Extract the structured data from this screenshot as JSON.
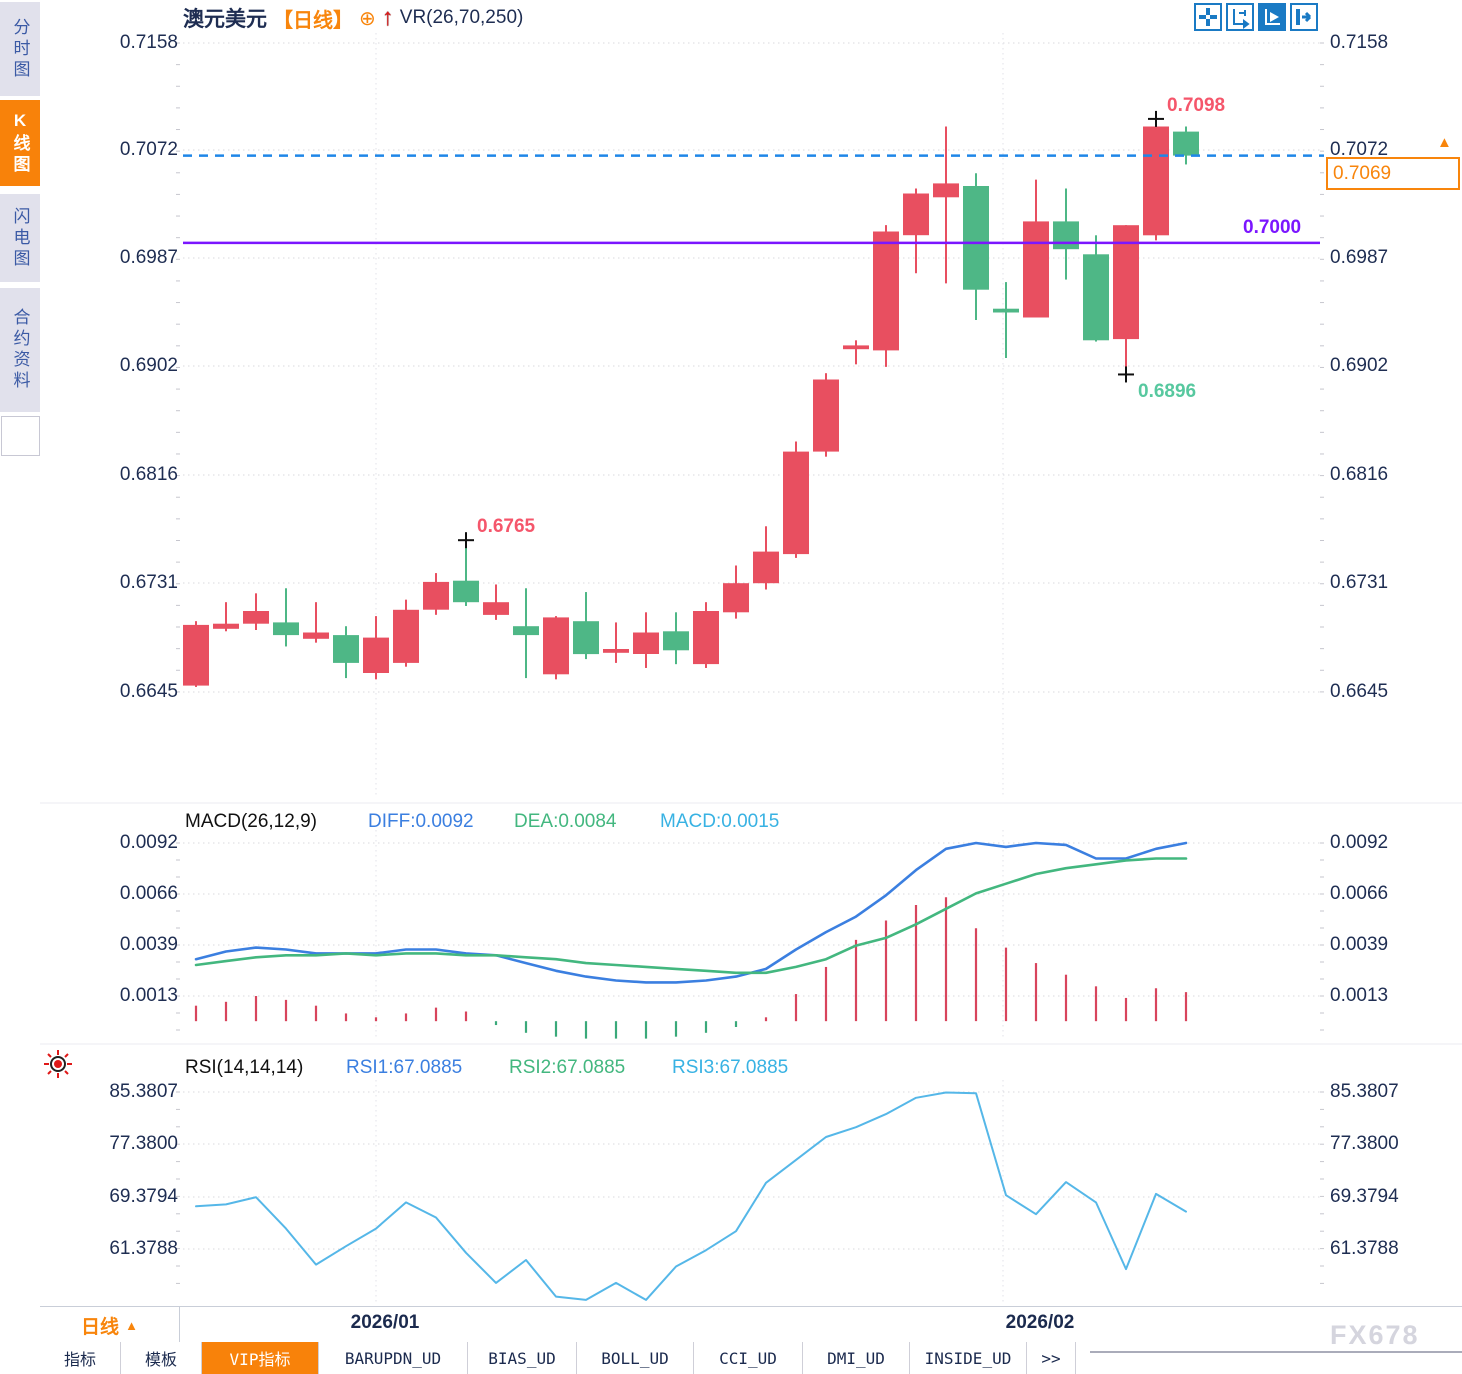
{
  "title": {
    "symbol": "澳元美元",
    "period": "【日线】",
    "plus_icon": "⊕",
    "indicator": "VR(26,70,250)"
  },
  "sidebar": {
    "tabs": [
      {
        "label": "分时图",
        "active": false
      },
      {
        "label": "K线图",
        "active": true
      },
      {
        "label": "闪电图",
        "active": false
      },
      {
        "label": "合约资料",
        "active": false
      }
    ]
  },
  "toolbar_icons": [
    "move-icon",
    "axis-range-icon",
    "axis-play-icon",
    "collapse-right-icon"
  ],
  "main_chart": {
    "y_axis": [
      "0.7158",
      "0.7072",
      "0.6987",
      "0.6902",
      "0.6816",
      "0.6731",
      "0.6645"
    ],
    "annotations": {
      "high": "0.7098",
      "low": "0.6896",
      "swing_high": "0.6765",
      "support_line": "0.7000"
    },
    "last_price": "0.7069",
    "marker_arrow": "▲"
  },
  "macd_panel": {
    "title": "MACD(26,12,9)",
    "diff_label": "DIFF:0.0092",
    "dea_label": "DEA:0.0084",
    "macd_label": "MACD:0.0015",
    "y_axis": [
      "0.0092",
      "0.0066",
      "0.0039",
      "0.0013"
    ]
  },
  "rsi_panel": {
    "title": "RSI(14,14,14)",
    "rsi1_label": "RSI1:67.0885",
    "rsi2_label": "RSI2:67.0885",
    "rsi3_label": "RSI3:67.0885",
    "y_axis": [
      "85.3807",
      "77.3800",
      "69.3794",
      "61.3788"
    ]
  },
  "time_axis": {
    "period": "日线",
    "period_arrow": "▲",
    "dates": [
      "2026/01",
      "2026/02"
    ],
    "watermark": "FX678"
  },
  "bottom_tabs": [
    {
      "label": "指标",
      "active": false
    },
    {
      "label": "模板",
      "active": false
    },
    {
      "label": "VIP指标",
      "active": true
    },
    {
      "label": "BARUPDN_UD",
      "active": false
    },
    {
      "label": "BIAS_UD",
      "active": false
    },
    {
      "label": "BOLL_UD",
      "active": false
    },
    {
      "label": "CCI_UD",
      "active": false
    },
    {
      "label": "DMI_UD",
      "active": false
    },
    {
      "label": "INSIDE_UD",
      "active": false
    },
    {
      "label": ">>",
      "active": false
    }
  ],
  "colors": {
    "up": "#e84f60",
    "down": "#4eb786",
    "hist_up": "#d8445c",
    "hist_down": "#3aa97a",
    "accent_orange": "#f8850c",
    "purple": "#7b16ff",
    "dashed_blue": "#1f86e8",
    "diff_blue": "#3b7fe0",
    "dea_green": "#43b77f",
    "macd_cyan": "#38b2e3",
    "rsi_line": "#55b7e8",
    "axis_text": "#1e2d52",
    "cross": "#101010"
  },
  "chart_data": [
    {
      "type": "candlestick",
      "title": "澳元美元 日线",
      "x_labels": [
        "2026/01",
        "2026/02"
      ],
      "ylim": [
        0.6645,
        0.7158
      ],
      "yticks": [
        0.7158,
        0.7072,
        0.6987,
        0.6902,
        0.6816,
        0.6731,
        0.6645
      ],
      "ohlc": [
        [
          0.665,
          0.6701,
          0.6649,
          0.6698
        ],
        [
          0.6695,
          0.6716,
          0.6693,
          0.6699
        ],
        [
          0.6699,
          0.6723,
          0.6694,
          0.6709
        ],
        [
          0.67,
          0.6727,
          0.6681,
          0.669
        ],
        [
          0.6687,
          0.6716,
          0.6684,
          0.6692
        ],
        [
          0.669,
          0.6697,
          0.6656,
          0.6668
        ],
        [
          0.666,
          0.6705,
          0.6655,
          0.6688
        ],
        [
          0.6668,
          0.6718,
          0.6665,
          0.671
        ],
        [
          0.671,
          0.6739,
          0.6706,
          0.6732
        ],
        [
          0.6733,
          0.6765,
          0.6713,
          0.6716
        ],
        [
          0.6706,
          0.673,
          0.6702,
          0.6716
        ],
        [
          0.6697,
          0.6727,
          0.6656,
          0.669
        ],
        [
          0.6659,
          0.6705,
          0.6655,
          0.6704
        ],
        [
          0.6701,
          0.6724,
          0.6671,
          0.6675
        ],
        [
          0.6676,
          0.67,
          0.6668,
          0.6679
        ],
        [
          0.6675,
          0.6708,
          0.6664,
          0.6692
        ],
        [
          0.6693,
          0.6708,
          0.6667,
          0.6678
        ],
        [
          0.6667,
          0.6716,
          0.6664,
          0.6709
        ],
        [
          0.6708,
          0.6745,
          0.6703,
          0.6731
        ],
        [
          0.6731,
          0.6776,
          0.6726,
          0.6756
        ],
        [
          0.6754,
          0.6843,
          0.6751,
          0.6835
        ],
        [
          0.6835,
          0.6897,
          0.6831,
          0.6892
        ],
        [
          0.6916,
          0.6923,
          0.6904,
          0.6919
        ],
        [
          0.6915,
          0.7014,
          0.6902,
          0.7009
        ],
        [
          0.7006,
          0.7043,
          0.6976,
          0.7039
        ],
        [
          0.7036,
          0.7092,
          0.6968,
          0.7047
        ],
        [
          0.7045,
          0.7055,
          0.6939,
          0.6963
        ],
        [
          0.6948,
          0.6969,
          0.6909,
          0.6945
        ],
        [
          0.6941,
          0.705,
          0.6941,
          0.7017
        ],
        [
          0.7017,
          0.7043,
          0.6971,
          0.6995
        ],
        [
          0.6991,
          0.7006,
          0.6922,
          0.6923
        ],
        [
          0.6924,
          0.7014,
          0.6896,
          0.7014
        ],
        [
          0.7006,
          0.7098,
          0.7002,
          0.7092
        ],
        [
          0.7088,
          0.7092,
          0.7062,
          0.7069
        ]
      ],
      "markers": [
        {
          "index": 9,
          "price": 0.6765,
          "label": "0.6765"
        },
        {
          "index": 31,
          "price": 0.6896,
          "label": "0.6896"
        },
        {
          "index": 32,
          "price": 0.7098,
          "label": "0.7098"
        }
      ],
      "hline": 0.7,
      "last_price": 0.7069
    },
    {
      "type": "macd",
      "params": [
        26,
        12,
        9
      ],
      "yticks": [
        0.0092,
        0.0066,
        0.0039,
        0.0013
      ],
      "diff": [
        0.0032,
        0.0036,
        0.0038,
        0.0037,
        0.0035,
        0.0035,
        0.0035,
        0.0037,
        0.0037,
        0.0035,
        0.0034,
        0.003,
        0.0026,
        0.0023,
        0.0021,
        0.002,
        0.002,
        0.0021,
        0.0023,
        0.0027,
        0.0037,
        0.0046,
        0.0054,
        0.0065,
        0.0078,
        0.0089,
        0.0092,
        0.009,
        0.0092,
        0.0091,
        0.0084,
        0.0084,
        0.0089,
        0.0092
      ],
      "dea": [
        0.0029,
        0.0031,
        0.0033,
        0.0034,
        0.0034,
        0.0035,
        0.0034,
        0.0035,
        0.0035,
        0.0034,
        0.0034,
        0.0033,
        0.0032,
        0.003,
        0.0029,
        0.0028,
        0.0027,
        0.0026,
        0.0025,
        0.0025,
        0.0028,
        0.0032,
        0.0039,
        0.0043,
        0.005,
        0.0058,
        0.0066,
        0.0071,
        0.0076,
        0.0079,
        0.0081,
        0.0083,
        0.0084,
        0.0084
      ],
      "histogram": [
        0.0008,
        0.001,
        0.0013,
        0.0011,
        0.0008,
        0.0004,
        0.0002,
        0.0004,
        0.0007,
        0.0005,
        -0.0002,
        -0.0006,
        -0.0008,
        -0.0009,
        -0.0009,
        -0.0009,
        -0.0008,
        -0.0006,
        -0.0003,
        0.0002,
        0.0014,
        0.0028,
        0.0042,
        0.0052,
        0.006,
        0.0064,
        0.0048,
        0.0038,
        0.003,
        0.0024,
        0.0018,
        0.0012,
        0.0017,
        0.0015
      ]
    },
    {
      "type": "line",
      "name": "RSI(14,14,14)",
      "yticks": [
        85.3807,
        77.38,
        69.3794,
        61.3788
      ],
      "values": [
        67.9,
        68.2,
        69.3,
        64.5,
        59.0,
        61.8,
        64.5,
        68.5,
        66.2,
        60.8,
        56.2,
        59.7,
        54.1,
        53.6,
        56.2,
        53.6,
        58.7,
        61.2,
        64.1,
        71.5,
        75.0,
        78.5,
        80.0,
        82.0,
        84.5,
        85.3,
        85.2,
        69.6,
        66.7,
        71.6,
        68.5,
        58.3,
        69.8,
        67.09
      ]
    }
  ]
}
